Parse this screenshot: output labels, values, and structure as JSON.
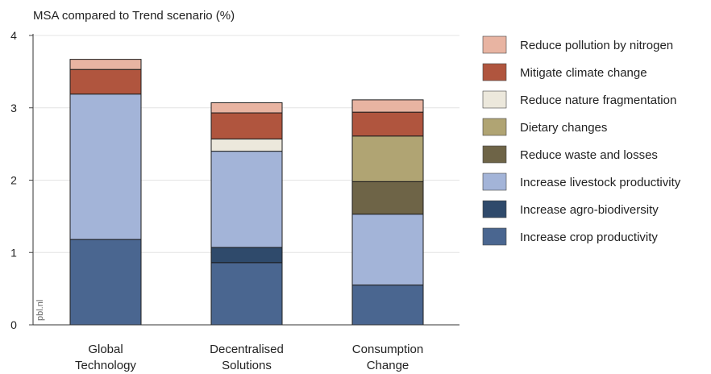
{
  "chart_data": {
    "type": "bar",
    "stacked": true,
    "title": "",
    "ylabel": "MSA compared to Trend scenario (%)",
    "xlabel": "",
    "ylim": [
      0,
      4
    ],
    "yticks": [
      "0",
      "1",
      "2",
      "3",
      "4"
    ],
    "grid": true,
    "legend_placement": "right",
    "categories": [
      [
        "Global",
        "Technology"
      ],
      [
        "Decentralised",
        "Solutions"
      ],
      [
        "Consumption",
        "Change"
      ]
    ],
    "series": [
      {
        "name": "Increase crop productivity",
        "color": "#4a6690",
        "values": [
          1.18,
          0.86,
          0.55
        ]
      },
      {
        "name": "Increase agro-biodiversity",
        "color": "#2f4a6b",
        "values": [
          0.0,
          0.21,
          0.0
        ]
      },
      {
        "name": "Increase livestock productivity",
        "color": "#a3b4d8",
        "values": [
          2.01,
          1.33,
          0.98
        ]
      },
      {
        "name": "Reduce waste and losses",
        "color": "#6e6447",
        "values": [
          0.0,
          0.0,
          0.45
        ]
      },
      {
        "name": "Dietary changes",
        "color": "#b0a473",
        "values": [
          0.0,
          0.0,
          0.63
        ]
      },
      {
        "name": "Reduce nature fragmentation",
        "color": "#ece8dc",
        "values": [
          0.0,
          0.17,
          0.0
        ]
      },
      {
        "name": "Mitigate climate change",
        "color": "#b0553e",
        "values": [
          0.34,
          0.36,
          0.33
        ]
      },
      {
        "name": "Reduce pollution by nitrogen",
        "color": "#e8b4a2",
        "values": [
          0.14,
          0.14,
          0.17
        ]
      }
    ],
    "legend_order": [
      "Reduce pollution by nitrogen",
      "Mitigate climate change",
      "Reduce nature fragmentation",
      "Dietary changes",
      "Reduce waste and losses",
      "Increase livestock productivity",
      "Increase agro-biodiversity",
      "Increase crop productivity"
    ],
    "watermark": "pbl.nl"
  }
}
